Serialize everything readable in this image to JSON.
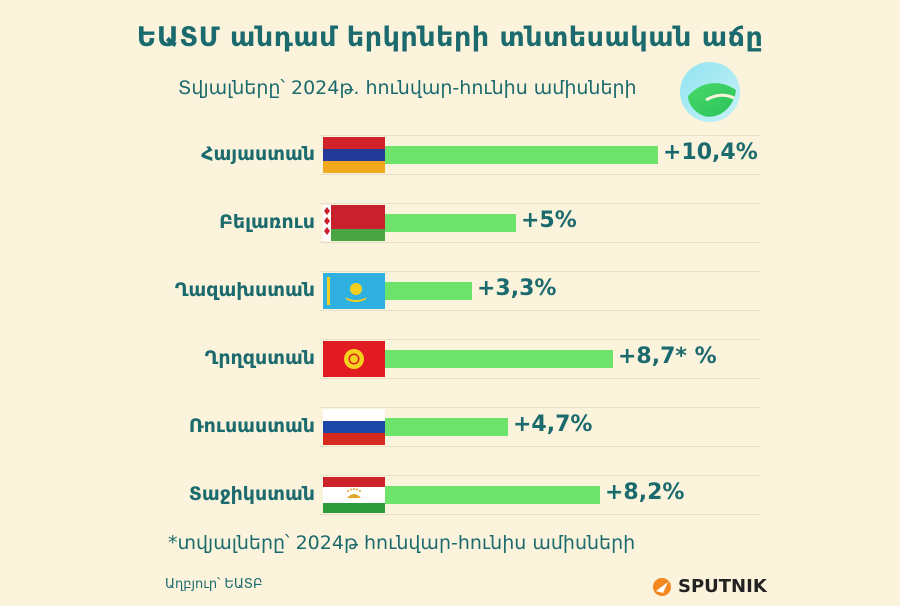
{
  "header": {
    "title": "ԵԱՏՄ անդամ երկրների տնտեսական աճը",
    "subtitle": "Տվյալները՝ 2024թ. հունվար-հունիս ամիսների"
  },
  "chart_data": {
    "type": "bar",
    "orientation": "horizontal",
    "categories": [
      "Հայաստան",
      "Բելառուս",
      "Ղազախստան",
      "Ղրղզստան",
      "Ռուսաստան",
      "Տաջիկստան"
    ],
    "values": [
      10.4,
      5,
      3.3,
      8.7,
      4.7,
      8.2
    ],
    "value_labels": [
      "+10,4%",
      "+5%",
      "+3,3%",
      "+8,7* %",
      "+4,7%",
      "+8,2%"
    ],
    "bar_color": "#6ee36b",
    "flags": [
      "armenia-flag",
      "belarus-flag",
      "kazakhstan-flag",
      "kyrgyzstan-flag",
      "russia-flag",
      "tajikistan-flag"
    ]
  },
  "footer": {
    "footnote": "*տվյալները՝ 2024թ հունվար-հունիս ամիսների",
    "source": "Աղբյուր՝ ԵԱՏԲ",
    "brand": "SPUTNIK"
  },
  "colors": {
    "background": "#fbf3dc",
    "text": "#1b6a6d",
    "bar": "#6ee36b"
  }
}
